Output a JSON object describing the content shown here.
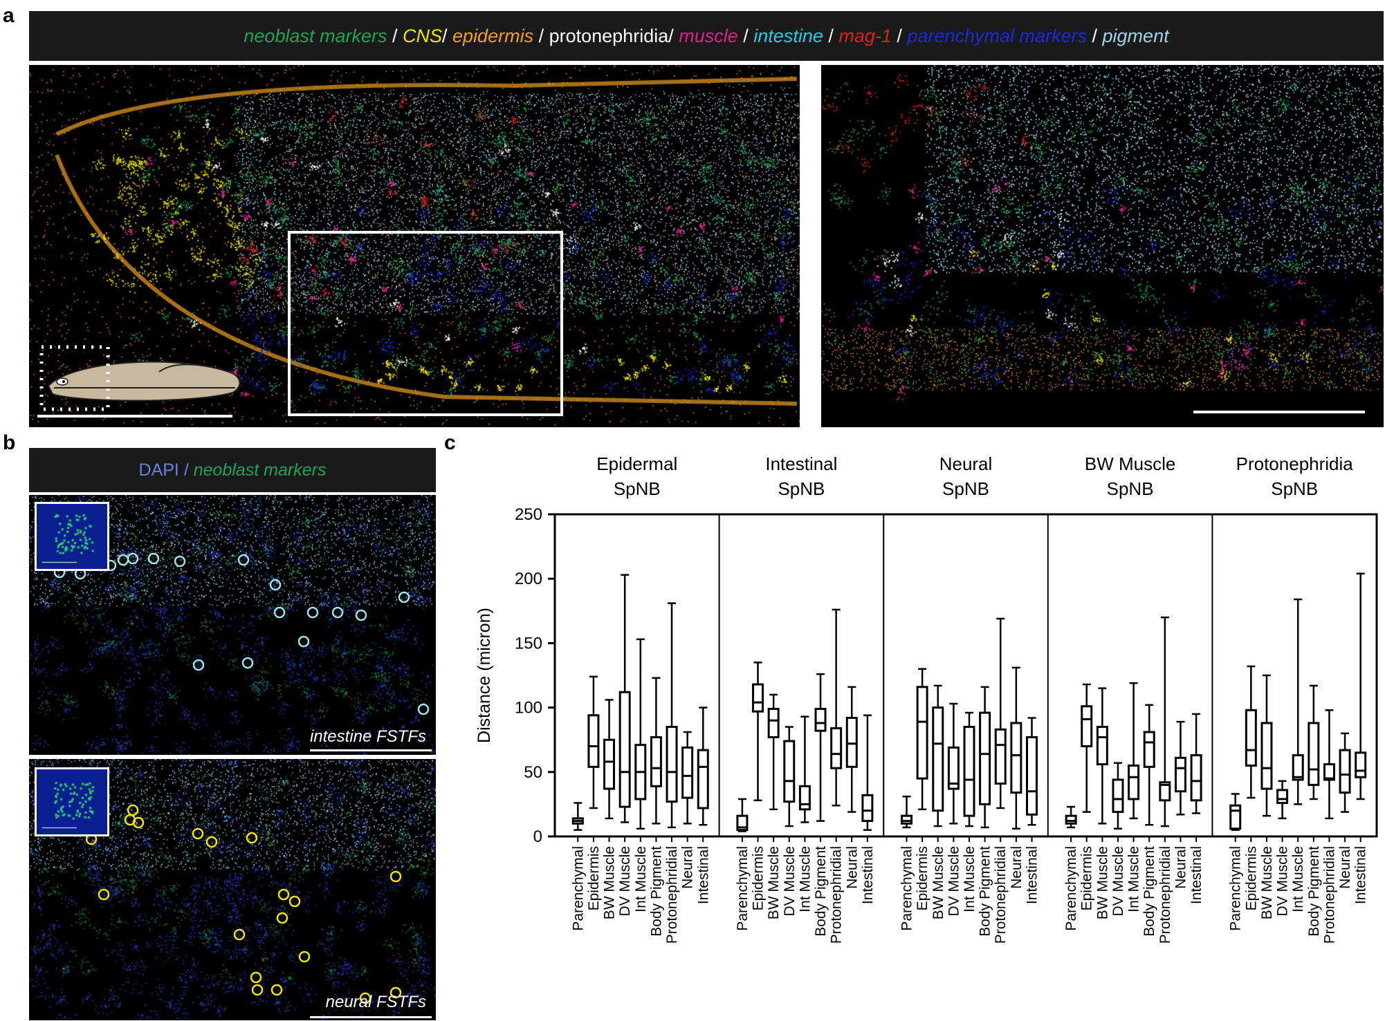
{
  "panels": {
    "a": "a",
    "b": "b",
    "c": "c"
  },
  "legend_a": [
    {
      "text": "neoblast markers",
      "color": "#1fa35a",
      "italic": true
    },
    {
      "text": " / ",
      "color": "#ffffff",
      "italic": false
    },
    {
      "text": "CNS",
      "color": "#f3e600",
      "italic": true
    },
    {
      "text": "/ ",
      "color": "#ffffff",
      "italic": false
    },
    {
      "text": "epidermis",
      "color": "#f0a020",
      "italic": true
    },
    {
      "text": " / ",
      "color": "#ffffff",
      "italic": false
    },
    {
      "text": "protonephridia/ ",
      "color": "#ffffff",
      "italic": false
    },
    {
      "text": "muscle",
      "color": "#e0208f",
      "italic": true
    },
    {
      "text": " / ",
      "color": "#ffffff",
      "italic": false
    },
    {
      "text": "intestine",
      "color": "#20d0e0",
      "italic": true
    },
    {
      "text": " / ",
      "color": "#ffffff",
      "italic": false
    },
    {
      "text": "mag-1",
      "color": "#e02020",
      "italic": true
    },
    {
      "text": " / ",
      "color": "#ffffff",
      "italic": false
    },
    {
      "text": "parenchymal markers",
      "color": "#1a2bd8",
      "italic": true
    },
    {
      "text": " / ",
      "color": "#ffffff",
      "italic": false
    },
    {
      "text": "pigment",
      "color": "#9fd3ea",
      "italic": true
    }
  ],
  "legend_b": [
    {
      "text": "DAPI",
      "color": "#6d7fd8",
      "italic": false
    },
    {
      "text": " / ",
      "color": "#6d7fd8",
      "italic": false
    },
    {
      "text": "neoblast markers",
      "color": "#1fa35a",
      "italic": true
    }
  ],
  "b_captions": {
    "top": "intestine FSTFs",
    "bottom": "neural FSTFs"
  },
  "colors": {
    "neoblast": "#1fa35a",
    "cns": "#f3e600",
    "epidermis": "#f0a020",
    "protonephridia": "#ffffff",
    "muscle": "#e0208f",
    "intestine": "#20d0e0",
    "mag1": "#e02020",
    "parenchymal": "#1a2bd8",
    "pigment": "#9fd3ea",
    "dapi": "#2a3fc0",
    "circle_intestine": "#9fe3ee",
    "circle_neural": "#f3e600"
  },
  "chart_data": {
    "type": "box",
    "ylabel": "Distance (micron)",
    "ylim": [
      0,
      250
    ],
    "yticks": [
      0,
      50,
      100,
      150,
      200,
      250
    ],
    "categories": [
      "Parenchymal",
      "Epidermis",
      "BW Muscle",
      "DV Muscle",
      "Int Muscle",
      "Body Pigment",
      "Protonephridial",
      "Neural",
      "Intestinal"
    ],
    "groups": [
      {
        "title_line1": "Epidermal",
        "title_line2": "SpNB",
        "boxes": [
          [
            5,
            10,
            12,
            14,
            26
          ],
          [
            22,
            54,
            70,
            94,
            124
          ],
          [
            14,
            37,
            58,
            75,
            106
          ],
          [
            11,
            23,
            50,
            112,
            203
          ],
          [
            6,
            29,
            50,
            71,
            153
          ],
          [
            10,
            39,
            53,
            77,
            123
          ],
          [
            7,
            27,
            50,
            85,
            181
          ],
          [
            10,
            30,
            47,
            69,
            81
          ],
          [
            9,
            22,
            54,
            67,
            100
          ]
        ]
      },
      {
        "title_line1": "Intestinal",
        "title_line2": "SpNB",
        "boxes": [
          [
            4,
            5,
            7,
            16,
            29
          ],
          [
            28,
            97,
            104,
            118,
            135
          ],
          [
            21,
            77,
            90,
            99,
            110
          ],
          [
            8,
            27,
            43,
            74,
            85
          ],
          [
            11,
            21,
            25,
            39,
            93
          ],
          [
            12,
            82,
            88,
            99,
            126
          ],
          [
            24,
            53,
            64,
            84,
            176
          ],
          [
            19,
            54,
            72,
            92,
            116
          ],
          [
            5,
            12,
            20,
            32,
            94
          ]
        ]
      },
      {
        "title_line1": "Neural",
        "title_line2": "SpNB",
        "boxes": [
          [
            7,
            10,
            12,
            16,
            31
          ],
          [
            21,
            45,
            89,
            116,
            130
          ],
          [
            8,
            20,
            72,
            100,
            117
          ],
          [
            10,
            37,
            41,
            69,
            103
          ],
          [
            8,
            16,
            44,
            85,
            96
          ],
          [
            7,
            25,
            64,
            96,
            116
          ],
          [
            22,
            41,
            71,
            83,
            169
          ],
          [
            6,
            34,
            63,
            88,
            131
          ],
          [
            9,
            17,
            35,
            77,
            92
          ]
        ]
      },
      {
        "title_line1": "BW Muscle",
        "title_line2": "SpNB",
        "boxes": [
          [
            7,
            10,
            12,
            16,
            23
          ],
          [
            19,
            70,
            91,
            101,
            118
          ],
          [
            10,
            56,
            77,
            85,
            115
          ],
          [
            6,
            19,
            29,
            44,
            57
          ],
          [
            14,
            29,
            46,
            55,
            119
          ],
          [
            9,
            54,
            73,
            81,
            102
          ],
          [
            8,
            28,
            40,
            42,
            170
          ],
          [
            17,
            35,
            53,
            61,
            89
          ],
          [
            18,
            28,
            43,
            63,
            95
          ]
        ]
      },
      {
        "title_line1": "Protonephridia",
        "title_line2": "SpNB",
        "boxes": [
          [
            5,
            6,
            20,
            24,
            33
          ],
          [
            30,
            55,
            67,
            98,
            132
          ],
          [
            16,
            37,
            53,
            88,
            125
          ],
          [
            14,
            26,
            29,
            36,
            43
          ],
          [
            25,
            44,
            46,
            63,
            184
          ],
          [
            29,
            40,
            52,
            88,
            117
          ],
          [
            14,
            44,
            45,
            56,
            98
          ],
          [
            19,
            34,
            48,
            67,
            80
          ],
          [
            29,
            46,
            51,
            65,
            204
          ]
        ]
      }
    ]
  }
}
